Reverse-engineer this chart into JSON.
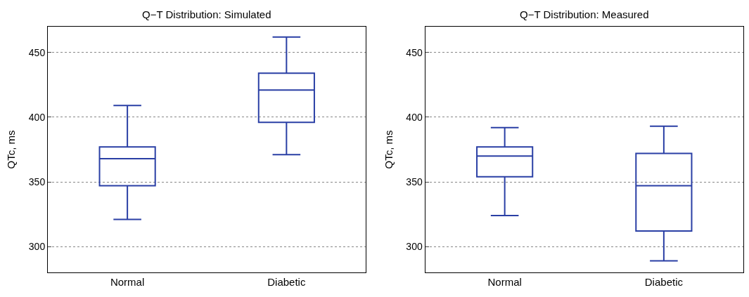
{
  "chart_data": [
    {
      "type": "box",
      "title": "Q−T Distribution: Simulated",
      "ylabel": "QTc, ms",
      "categories": [
        "Normal",
        "Diabetic"
      ],
      "ylim": [
        280,
        470
      ],
      "yticks": [
        300,
        350,
        400,
        450
      ],
      "grid": "y",
      "series": [
        {
          "color": "#2a3fa5",
          "boxes": [
            {
              "low": 321,
              "q1": 347,
              "median": 368,
              "q3": 377,
              "high": 409
            },
            {
              "low": 371,
              "q1": 396,
              "median": 421,
              "q3": 434,
              "high": 462
            }
          ]
        }
      ]
    },
    {
      "type": "box",
      "title": "Q−T Distribution: Measured",
      "ylabel": "QTc, ms",
      "categories": [
        "Normal",
        "Diabetic"
      ],
      "ylim": [
        280,
        470
      ],
      "yticks": [
        300,
        350,
        400,
        450
      ],
      "grid": "y",
      "series": [
        {
          "color": "#2a3fa5",
          "boxes": [
            {
              "low": 324,
              "q1": 354,
              "median": 370,
              "q3": 377,
              "high": 392
            },
            {
              "low": 289,
              "q1": 312,
              "median": 347,
              "q3": 372,
              "high": 393
            }
          ]
        }
      ]
    }
  ]
}
